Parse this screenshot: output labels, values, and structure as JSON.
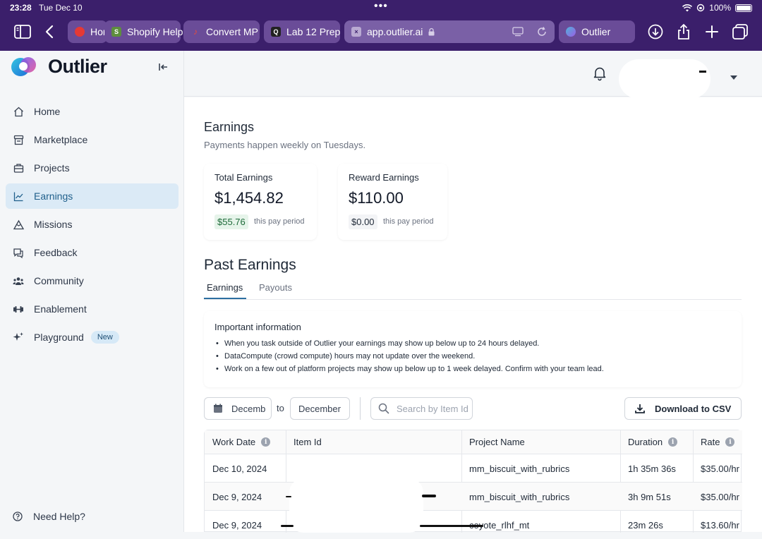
{
  "status": {
    "time": "23:28",
    "date": "Tue Dec 10",
    "battery": "100%"
  },
  "browser": {
    "tabs": [
      {
        "label": "Hom",
        "fav_color": "#e53935"
      },
      {
        "label": "Shopify Help",
        "fav_color": "#5e8e3e"
      },
      {
        "label": "Convert MP",
        "fav_color": "#c0392b"
      },
      {
        "label": "Lab 12 Prep",
        "fav_color": "#222222"
      },
      {
        "label": "app.outlier.ai",
        "fav_color": "#9b8ab8"
      },
      {
        "label": "Outlier",
        "fav_color": "#4fb3d9"
      }
    ]
  },
  "sidebar": {
    "brand": "Outlier",
    "items": [
      {
        "label": "Home",
        "icon": "home-icon"
      },
      {
        "label": "Marketplace",
        "icon": "marketplace-icon"
      },
      {
        "label": "Projects",
        "icon": "briefcase-icon"
      },
      {
        "label": "Earnings",
        "icon": "chart-line-icon",
        "active": true
      },
      {
        "label": "Missions",
        "icon": "mountain-icon"
      },
      {
        "label": "Feedback",
        "icon": "chat-icon"
      },
      {
        "label": "Community",
        "icon": "people-icon"
      },
      {
        "label": "Enablement",
        "icon": "dumbbell-icon"
      },
      {
        "label": "Playground",
        "icon": "sparkle-icon",
        "badge": "New"
      }
    ],
    "help": "Need Help?"
  },
  "earnings": {
    "title": "Earnings",
    "subtitle": "Payments happen weekly on Tuesdays.",
    "total": {
      "label": "Total Earnings",
      "value": "$1,454.82",
      "period_value": "$55.76",
      "period_label": "this pay period"
    },
    "reward": {
      "label": "Reward Earnings",
      "value": "$110.00",
      "period_value": "$0.00",
      "period_label": "this pay period"
    }
  },
  "past": {
    "title": "Past Earnings",
    "tabs": [
      "Earnings",
      "Payouts"
    ],
    "info_title": "Important information",
    "info_items": [
      "When you task outside of Outlier your earnings may show up below up to 24 hours delayed.",
      "DataCompute (crowd compute) hours may not update over the weekend.",
      "Work on a few out of platform projects may show up below up to 1 week delayed. Confirm with your team lead."
    ],
    "filter": {
      "from_value": "Decemb",
      "to_label": "to",
      "to_value": "December",
      "search_placeholder": "Search by Item Id",
      "csv_label": "Download to CSV"
    },
    "table": {
      "headers": [
        "Work Date",
        "Item Id",
        "Project Name",
        "Duration",
        "Rate"
      ],
      "rows": [
        {
          "date": "Dec 10, 2024",
          "item": "",
          "project": "mm_biscuit_with_rubrics",
          "duration": "1h 35m 36s",
          "rate": "$35.00/hr"
        },
        {
          "date": "Dec 9, 2024",
          "item": "",
          "project": "mm_biscuit_with_rubrics",
          "duration": "3h 9m 51s",
          "rate": "$35.00/hr"
        },
        {
          "date": "Dec 9, 2024",
          "item": "",
          "project": "coyote_rlhf_mt",
          "duration": "23m 26s",
          "rate": "$13.60/hr"
        }
      ]
    }
  },
  "colors": {
    "os_bar": "#3b1f6b",
    "accent": "#2d6fa1",
    "active_nav": "#dbeaf6",
    "positive_chip": "#e6f4ea"
  }
}
